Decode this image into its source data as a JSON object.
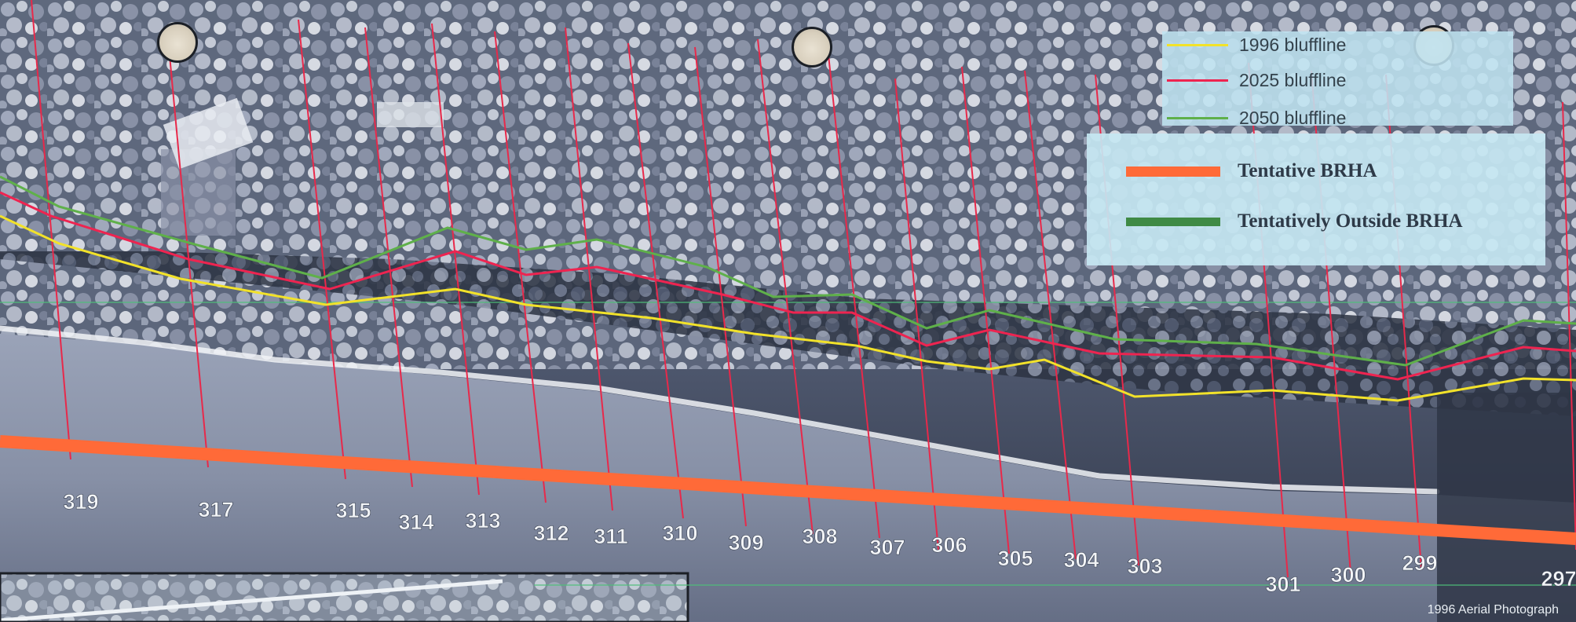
{
  "legend": {
    "bluffline_1996": "1996 bluffline",
    "bluffline_2025": "2025 bluffline",
    "bluffline_2050": "2050 bluffline",
    "tentative_brha": "Tentative BRHA",
    "tentatively_outside_brha": "Tentatively Outside BRHA"
  },
  "colors": {
    "bluffline_1996": "#f2e22a",
    "bluffline_2025": "#ee2450",
    "bluffline_2050": "#5fb04a",
    "tentative_brha": "#ff6a38",
    "tentatively_outside_brha": "#3f8a45",
    "transect": "#e8294a"
  },
  "transects": [
    {
      "label": "319"
    },
    {
      "label": "317"
    },
    {
      "label": "315"
    },
    {
      "label": "314"
    },
    {
      "label": "313"
    },
    {
      "label": "312"
    },
    {
      "label": "311"
    },
    {
      "label": "310"
    },
    {
      "label": "309"
    },
    {
      "label": "308"
    },
    {
      "label": "307"
    },
    {
      "label": "306"
    },
    {
      "label": "305"
    },
    {
      "label": "304"
    },
    {
      "label": "303"
    },
    {
      "label": "301"
    },
    {
      "label": "300"
    },
    {
      "label": "299"
    },
    {
      "label": "297"
    }
  ],
  "caption": "1996 Aerial Photograph"
}
